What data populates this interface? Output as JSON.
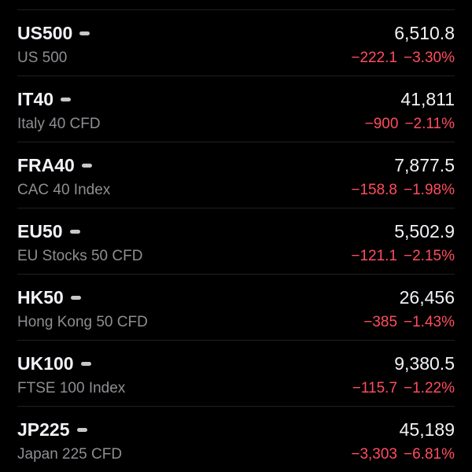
{
  "rows": [
    {
      "symbol": "US500",
      "name": "US 500",
      "price": "6,510.8",
      "change": "−222.1",
      "percent": "−3.30%"
    },
    {
      "symbol": "IT40",
      "name": "Italy 40 CFD",
      "price": "41,811",
      "change": "−900",
      "percent": "−2.11%"
    },
    {
      "symbol": "FRA40",
      "name": "CAC 40 Index",
      "price": "7,877.5",
      "change": "−158.8",
      "percent": "−1.98%"
    },
    {
      "symbol": "EU50",
      "name": "EU Stocks 50 CFD",
      "price": "5,502.9",
      "change": "−121.1",
      "percent": "−2.15%"
    },
    {
      "symbol": "HK50",
      "name": "Hong Kong 50 CFD",
      "price": "26,456",
      "change": "−385",
      "percent": "−1.43%"
    },
    {
      "symbol": "UK100",
      "name": "FTSE 100 Index",
      "price": "9,380.5",
      "change": "−115.7",
      "percent": "−1.22%"
    },
    {
      "symbol": "JP225",
      "name": "Japan 225 CFD",
      "price": "45,189",
      "change": "−3,303",
      "percent": "−6.81%"
    }
  ]
}
